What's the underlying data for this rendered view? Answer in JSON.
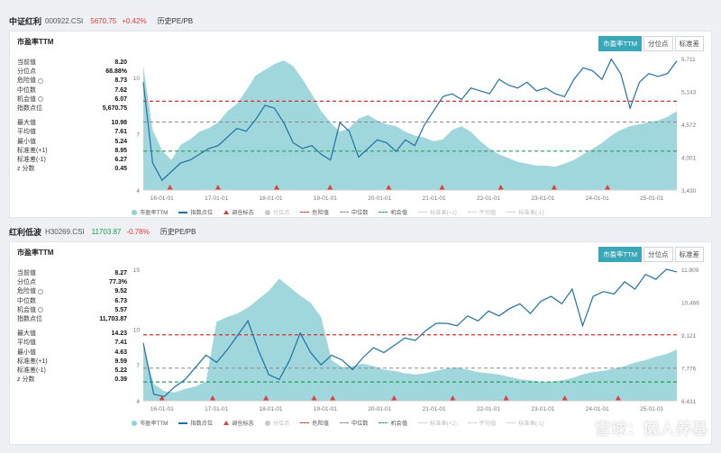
{
  "panels": [
    {
      "header": {
        "name": "中证红利",
        "code": "000922.CSI",
        "price": "5670.75",
        "change": "+0.42%",
        "change_dir": "up",
        "tab": "历史PE/PB"
      },
      "title": "市盈率TTM",
      "seg": [
        "市盈率TTM",
        "分位点",
        "标准差"
      ],
      "stats_top": [
        {
          "k": "当前值",
          "v": "8.20",
          "icon": false
        },
        {
          "k": "分位点",
          "v": "68.88%",
          "icon": false
        },
        {
          "k": "危险值",
          "v": "8.73",
          "icon": true
        },
        {
          "k": "中位数",
          "v": "7.62",
          "icon": false
        },
        {
          "k": "机会值",
          "v": "6.07",
          "icon": true
        },
        {
          "k": "指数点位",
          "v": "5,670.75",
          "icon": false
        }
      ],
      "stats_bottom": [
        {
          "k": "最大值",
          "v": "10.98"
        },
        {
          "k": "平均值",
          "v": "7.61"
        },
        {
          "k": "最小值",
          "v": "5.24"
        },
        {
          "k": "标准差(+1)",
          "v": "8.95"
        },
        {
          "k": "标准差(-1)",
          "v": "6.27"
        },
        {
          "k": "z 分数",
          "v": "0.45"
        }
      ]
    },
    {
      "header": {
        "name": "红利低波",
        "code": "H30269.CSI",
        "price": "11703.87",
        "change": "-0.78%",
        "change_dir": "down",
        "tab": "历史PE/PB"
      },
      "title": "市盈率TTM",
      "seg": [
        "市盈率TTM",
        "分位点",
        "标准差"
      ],
      "stats_top": [
        {
          "k": "当前值",
          "v": "8.27",
          "icon": false
        },
        {
          "k": "分位点",
          "v": "77.3%",
          "icon": false
        },
        {
          "k": "危险值",
          "v": "9.52",
          "icon": true
        },
        {
          "k": "中位数",
          "v": "6.73",
          "icon": false
        },
        {
          "k": "机会值",
          "v": "5.57",
          "icon": true
        },
        {
          "k": "指数点位",
          "v": "11,703.87",
          "icon": false
        }
      ],
      "stats_bottom": [
        {
          "k": "最大值",
          "v": "14.23"
        },
        {
          "k": "平均值",
          "v": "7.41"
        },
        {
          "k": "最小值",
          "v": "4.63"
        },
        {
          "k": "标准差(+1)",
          "v": "9.59"
        },
        {
          "k": "标准差(-1)",
          "v": "5.22"
        },
        {
          "k": "z 分数",
          "v": "0.39"
        }
      ]
    }
  ],
  "legend": [
    "市盈率TTM",
    "指数点位",
    "调仓标志",
    "分位点",
    "危险值",
    "中位数",
    "机会值",
    "标准差(+1)",
    "平均值",
    "标准差(-1)"
  ],
  "watermark": "雪球：懒人养基",
  "colors": {
    "area": "#8fd0d6",
    "line": "#1f6fa3",
    "danger": "#d92f2f",
    "median": "#8a8a8a",
    "chance": "#2a9a5a",
    "accent": "#3aa6b9"
  },
  "chart_data": [
    {
      "type": "area",
      "x_ticks": [
        "16-01-01",
        "17-01-01",
        "18-01-01",
        "19-01-01",
        "20-01-01",
        "21-01-01",
        "22-01-01",
        "23-01-01",
        "24-01-01",
        "25-01-01"
      ],
      "pe_ticks": [
        "4",
        "7",
        "10"
      ],
      "index_ticks": [
        "3,430",
        "4,001",
        "4,572",
        "5,143",
        "5,711"
      ],
      "pe_ylim": [
        4,
        11
      ],
      "index_ylim": [
        3430,
        5711
      ],
      "danger": 8.73,
      "median": 7.62,
      "chance": 6.07,
      "pe": [
        10.6,
        7.2,
        6.1,
        5.6,
        6.4,
        6.7,
        7.1,
        7.3,
        7.6,
        8.2,
        8.6,
        9.3,
        10.1,
        10.4,
        10.7,
        10.9,
        10.6,
        9.9,
        9.1,
        8.2,
        7.6,
        7.1,
        7.3,
        7.8,
        8.0,
        7.7,
        7.5,
        7.4,
        7.1,
        6.9,
        6.8,
        6.6,
        6.7,
        7.2,
        7.4,
        7.1,
        6.6,
        6.2,
        5.9,
        5.7,
        5.5,
        5.4,
        5.3,
        5.3,
        5.24,
        5.4,
        5.6,
        5.9,
        6.2,
        6.5,
        6.9,
        7.2,
        7.4,
        7.5,
        7.6,
        7.7,
        7.9,
        8.2
      ],
      "index": [
        5300,
        3900,
        3600,
        3750,
        3900,
        3950,
        4050,
        4150,
        4200,
        4350,
        4500,
        4450,
        4650,
        4900,
        4850,
        4600,
        4250,
        4150,
        4200,
        4050,
        3950,
        4600,
        4450,
        4000,
        4150,
        4300,
        4250,
        4100,
        4300,
        4200,
        4550,
        4800,
        5050,
        5100,
        5000,
        5200,
        5150,
        5100,
        5350,
        5250,
        5200,
        5300,
        5150,
        5200,
        5100,
        5050,
        5350,
        5550,
        5500,
        5350,
        5700,
        5450,
        4850,
        5300,
        5450,
        5400,
        5450,
        5671
      ],
      "markers": [
        0.05,
        0.14,
        0.25,
        0.35,
        0.46,
        0.56,
        0.67,
        0.77,
        0.87
      ]
    },
    {
      "type": "area",
      "x_ticks": [
        "16-01-01",
        "17-01-01",
        "18-01-01",
        "19-01-01",
        "20-01-01",
        "21-01-01",
        "22-01-01",
        "23-01-01",
        "24-01-01",
        "25-01-01"
      ],
      "pe_ticks": [
        "4",
        "7",
        "10",
        "15"
      ],
      "index_ticks": [
        "6,431",
        "7,776",
        "9,121",
        "10,466",
        "11,809"
      ],
      "pe_ylim": [
        4,
        15
      ],
      "index_ylim": [
        6431,
        11809
      ],
      "danger": 9.52,
      "median": 6.73,
      "chance": 5.57,
      "pe": [
        8.6,
        5.4,
        4.8,
        4.7,
        5.0,
        5.2,
        5.6,
        10.6,
        11.0,
        11.3,
        11.8,
        12.5,
        13.2,
        14.23,
        13.5,
        12.8,
        12.2,
        11.0,
        7.4,
        6.8,
        6.9,
        7.1,
        6.9,
        6.6,
        6.5,
        6.3,
        6.2,
        6.3,
        6.5,
        6.7,
        6.8,
        6.6,
        6.4,
        6.3,
        6.2,
        6.0,
        5.8,
        5.7,
        5.6,
        5.6,
        5.7,
        5.9,
        6.2,
        6.4,
        6.5,
        6.7,
        6.9,
        7.2,
        7.4,
        7.7,
        7.9,
        8.27
      ],
      "index": [
        8800,
        6700,
        6600,
        7000,
        7300,
        7800,
        8300,
        8000,
        8500,
        9100,
        9700,
        8500,
        7500,
        7300,
        8100,
        9200,
        8400,
        7900,
        8300,
        8100,
        7700,
        8200,
        8600,
        8400,
        8700,
        9000,
        8900,
        9300,
        9600,
        9600,
        9500,
        9900,
        9700,
        10100,
        9900,
        10200,
        10400,
        10000,
        10500,
        10700,
        10400,
        11000,
        9500,
        10700,
        10900,
        10800,
        11300,
        11000,
        11600,
        11400,
        11809,
        11704
      ],
      "markers": [
        0.035,
        0.13,
        0.23,
        0.32,
        0.355,
        0.47,
        0.58,
        0.68,
        0.79,
        0.89
      ]
    }
  ]
}
